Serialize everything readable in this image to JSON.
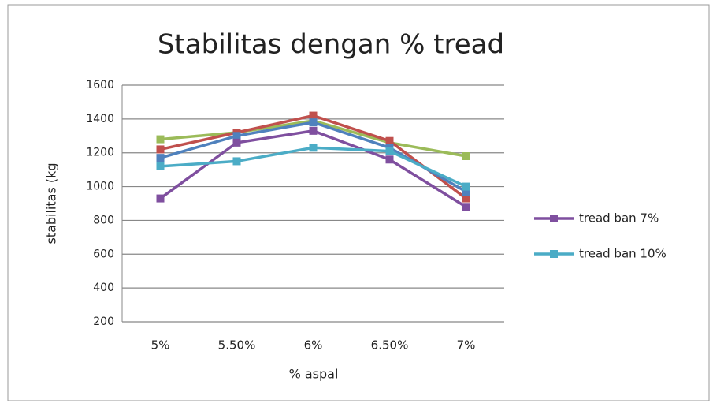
{
  "chart_data": {
    "type": "line",
    "title": "Stabilitas  dengan % tread",
    "x_label": "% aspal",
    "y_label": "stabilitas (kg",
    "categories": [
      "5%",
      "5.50%",
      "6%",
      "6.50%",
      "7%"
    ],
    "series": [
      {
        "color": "#9bbb59",
        "values": [
          1280,
          1320,
          1390,
          1260,
          1180
        ]
      },
      {
        "color": "#c0504d",
        "values": [
          1220,
          1320,
          1420,
          1270,
          930
        ]
      },
      {
        "color": "#4f81bd",
        "values": [
          1170,
          1300,
          1380,
          1230,
          970
        ]
      },
      {
        "name": "tread ban 7%",
        "color": "#7f4f9f",
        "values": [
          930,
          1260,
          1330,
          1160,
          880
        ]
      },
      {
        "name": "tread ban 10%",
        "color": "#4bacc6",
        "values": [
          1120,
          1150,
          1230,
          1210,
          1000
        ]
      }
    ],
    "ylim": [
      200,
      1600
    ],
    "yticks": [
      200,
      400,
      600,
      800,
      1000,
      1200,
      1400,
      1600
    ],
    "grid": true
  }
}
